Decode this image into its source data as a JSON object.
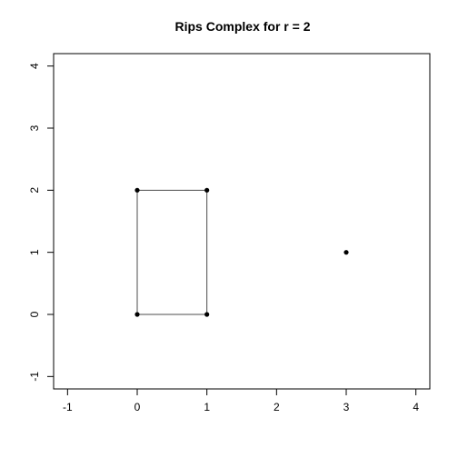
{
  "chart_data": {
    "type": "scatter",
    "title": "Rips Complex for r = 2",
    "xlabel": "",
    "ylabel": "",
    "xlim": [
      -1.2,
      4.2
    ],
    "ylim": [
      -1.2,
      4.2
    ],
    "x_ticks": [
      -1,
      0,
      1,
      2,
      3,
      4
    ],
    "y_ticks": [
      -1,
      0,
      1,
      2,
      3,
      4
    ],
    "grid": false,
    "points": [
      {
        "x": 0,
        "y": 0
      },
      {
        "x": 1,
        "y": 0
      },
      {
        "x": 0,
        "y": 2
      },
      {
        "x": 1,
        "y": 2
      },
      {
        "x": 3,
        "y": 1
      }
    ],
    "edges": [
      {
        "from": [
          0,
          0
        ],
        "to": [
          1,
          0
        ]
      },
      {
        "from": [
          1,
          0
        ],
        "to": [
          1,
          2
        ]
      },
      {
        "from": [
          1,
          2
        ],
        "to": [
          0,
          2
        ]
      },
      {
        "from": [
          0,
          2
        ],
        "to": [
          0,
          0
        ]
      }
    ],
    "colors": {
      "marks": "#000000",
      "edges": "#4d4d4d"
    }
  }
}
